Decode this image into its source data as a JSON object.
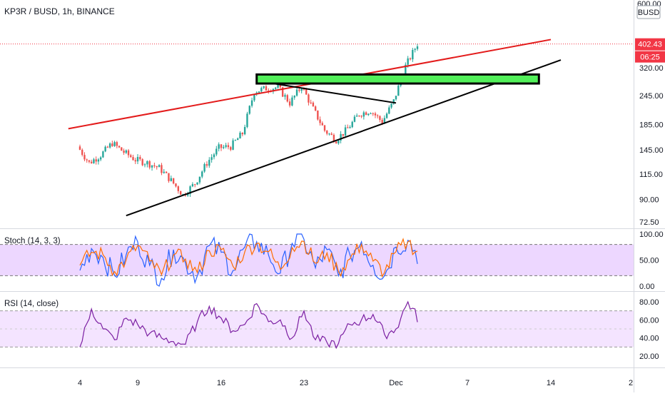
{
  "header": {
    "symbol": "KP3R / BUSD, 1h, BINANCE"
  },
  "price_axis": {
    "top_label": "600.00",
    "currency_badge": "BUSD",
    "last_price": "402.43",
    "countdown": "06:25"
  },
  "stoch_panel": {
    "title": "Stoch (14, 3, 3)"
  },
  "rsi_panel": {
    "title": "RSI (14, close)"
  },
  "colors": {
    "candle_up": "#26a69a",
    "candle_down": "#ef5350",
    "resistance_line": "#e31b1b",
    "trendline": "#000000",
    "zone_fill": "#52f05a",
    "stoch_k": "#2962ff",
    "stoch_d": "#ff6d00",
    "stoch_band": "#e7c9ff",
    "rsi_line": "#7b1fa2",
    "rsi_band": "#f3e1ff",
    "price_label_bg": "#f23645"
  },
  "chart_data": [
    {
      "type": "candlestick",
      "title": "KP3R / BUSD, 1h, BINANCE",
      "x_ticks": [
        "4",
        "9",
        "16",
        "23",
        "Dec",
        "7",
        "14",
        "2"
      ],
      "y_ticks": [
        72.5,
        90,
        115,
        145,
        185,
        245,
        320
      ],
      "y_scale": "log",
      "series": [
        {
          "name": "KP3R / BUSD",
          "x": [
            "4",
            "5",
            "6",
            "7",
            "8",
            "9",
            "10",
            "11",
            "12",
            "13",
            "14",
            "15",
            "16",
            "17",
            "18",
            "19",
            "20",
            "21",
            "22",
            "23",
            "24",
            "25",
            "26",
            "27",
            "28",
            "29",
            "30",
            "Dec",
            "2",
            "3"
          ],
          "close": [
            150,
            128,
            138,
            155,
            142,
            132,
            128,
            122,
            108,
            94,
            105,
            128,
            148,
            150,
            170,
            255,
            262,
            265,
            228,
            268,
            215,
            175,
            160,
            178,
            205,
            212,
            190,
            232,
            325,
            402.43
          ]
        }
      ],
      "annotations": {
        "resistance_line": [
          [
            "3",
            178
          ],
          [
            "14",
            420
          ]
        ],
        "rising_trendline": [
          [
            "8",
            77
          ],
          [
            "15",
            345
          ]
        ],
        "falling_trendline": [
          [
            "19",
            282
          ],
          [
            "Dec",
            228
          ]
        ],
        "horizontal_zone": {
          "x_range": [
            "19",
            "13"
          ],
          "y_range": [
            275,
            300
          ]
        }
      }
    },
    {
      "type": "line",
      "title": "Stoch (14, 3, 3)",
      "y_ticks": [
        0,
        50,
        100
      ],
      "bands": [
        20,
        80
      ],
      "series": [
        {
          "values": [
            30,
            72,
            55,
            20,
            60,
            85,
            40,
            15,
            70,
            45,
            20,
            78,
            65,
            30,
            75,
            85,
            60,
            25,
            82,
            90,
            35,
            70,
            20,
            60,
            85,
            40,
            20,
            75,
            88,
            55
          ]
        },
        {
          "values": [
            40,
            65,
            60,
            28,
            50,
            78,
            48,
            22,
            60,
            52,
            26,
            68,
            70,
            38,
            66,
            82,
            66,
            32,
            74,
            86,
            44,
            64,
            28,
            52,
            80,
            48,
            26,
            66,
            85,
            60
          ]
        }
      ]
    },
    {
      "type": "line",
      "title": "RSI (14, close)",
      "y_ticks": [
        20,
        40,
        60,
        80
      ],
      "bands": [
        30,
        70
      ],
      "series": [
        {
          "values": [
            30,
            72,
            50,
            38,
            62,
            55,
            45,
            40,
            36,
            33,
            58,
            75,
            62,
            48,
            55,
            78,
            58,
            60,
            40,
            70,
            38,
            35,
            34,
            55,
            60,
            66,
            44,
            50,
            80,
            58
          ]
        }
      ]
    }
  ]
}
